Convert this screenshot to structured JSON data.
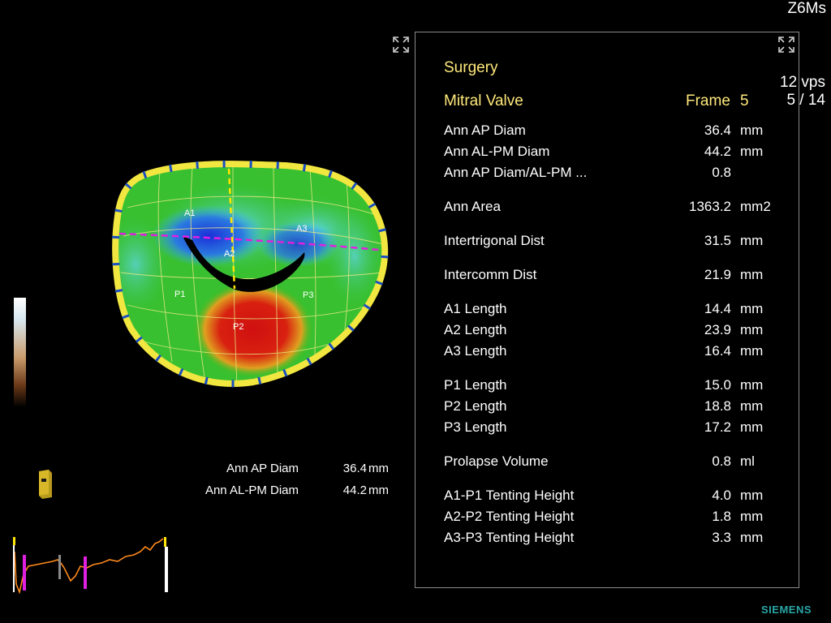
{
  "header": {
    "probe": "Z6Ms",
    "rate": "12 vps",
    "frame_counter": "5 / 14"
  },
  "brand": "SIEMENS",
  "icons": [
    "expand-icon",
    "expand-icon",
    "orientation-cube-icon"
  ],
  "panel": {
    "title": "Surgery",
    "valve": "Mitral Valve",
    "frame_label": "Frame",
    "frame_value": "5",
    "measurements": [
      {
        "label": "Ann AP Diam",
        "value": "36.4",
        "unit": "mm"
      },
      {
        "label": "Ann AL-PM Diam",
        "value": "44.2",
        "unit": "mm"
      },
      {
        "label": "Ann AP Diam/AL-PM ...",
        "value": "0.8",
        "unit": ""
      },
      {
        "label": "Ann Area",
        "value": "1363.2",
        "unit": "mm2"
      },
      {
        "label": "Intertrigonal Dist",
        "value": "31.5",
        "unit": "mm"
      },
      {
        "label": "Intercomm Dist",
        "value": "21.9",
        "unit": "mm"
      },
      {
        "label": "A1 Length",
        "value": "14.4",
        "unit": "mm"
      },
      {
        "label": "A2 Length",
        "value": "23.9",
        "unit": "mm"
      },
      {
        "label": "A3 Length",
        "value": "16.4",
        "unit": "mm"
      },
      {
        "label": "P1 Length",
        "value": "15.0",
        "unit": "mm"
      },
      {
        "label": "P2 Length",
        "value": "18.8",
        "unit": "mm"
      },
      {
        "label": "P3 Length",
        "value": "17.2",
        "unit": "mm"
      },
      {
        "label": "Prolapse Volume",
        "value": "0.8",
        "unit": "ml"
      },
      {
        "label": "A1-P1 Tenting Height",
        "value": "4.0",
        "unit": "mm"
      },
      {
        "label": "A2-P2 Tenting Height",
        "value": "1.8",
        "unit": "mm"
      },
      {
        "label": "A3-P3 Tenting Height",
        "value": "3.3",
        "unit": "mm"
      }
    ]
  },
  "overlay": [
    {
      "label": "Ann AP Diam",
      "value": "36.4",
      "unit": "mm"
    },
    {
      "label": "Ann AL-PM Diam",
      "value": "44.2",
      "unit": "mm"
    }
  ],
  "valve_labels": {
    "a1": "A1",
    "a2": "A2",
    "a3": "A3",
    "p1": "P1",
    "p2": "P2",
    "p3": "P3"
  },
  "colors": {
    "title_yellow": "#ffe97a",
    "panel_border": "#8a8a8a",
    "brand": "#2aa6a6",
    "annulus": "#f2e640",
    "ap_line": "#ffe600",
    "alpm_line": "#e020e0"
  }
}
